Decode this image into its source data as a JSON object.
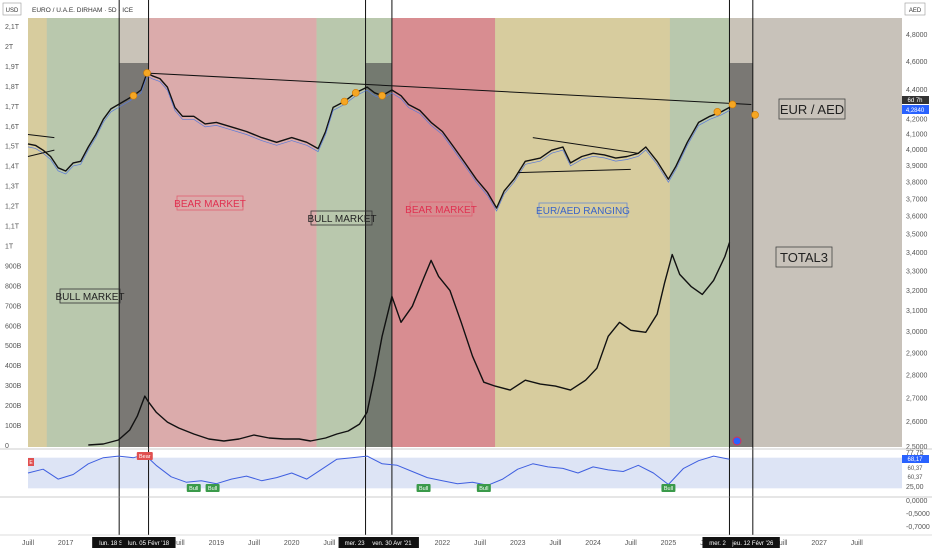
{
  "header": {
    "symbol_title": "EURO / U.A.E. DIRHAM · 5D · ICE",
    "left_currency": "USD",
    "right_currency": "AED"
  },
  "labels": {
    "eur_aed": "EUR / AED",
    "total3": "TOTAL3",
    "bull_market_1": "BULL MARKET",
    "bear_market_1": "BEAR MARKET",
    "bull_market_2": "BULL MARKET",
    "bear_market_2": "BEAR MARKET",
    "ranging": "EUR/AED RANGING"
  },
  "price_tags": {
    "eur_aed_tag": "4,2840",
    "total3_tag": "6d 7h",
    "rsi_tag_1": "68,17",
    "rsi_tag_2": "60,37",
    "rsi_tag_3": "60,37"
  },
  "rsi_signals": {
    "bear": "Bear",
    "bull": "Bull",
    "edge": "E"
  },
  "date_markers": [
    {
      "label": "lun. 18 Sep '17",
      "time": 2017.71
    },
    {
      "label": "lun. 05 Févr '18",
      "time": 2018.1
    },
    {
      "label": "mer. 23 Déc '20",
      "time": 2020.98
    },
    {
      "label": "ven. 30 Avr '21",
      "time": 2021.33
    },
    {
      "label": "mer. 22 Oct '25",
      "time": 2025.81
    },
    {
      "label": "jeu. 12 Févr '26",
      "time": 2026.12
    }
  ],
  "chart_data": {
    "type": "line",
    "x_axis": {
      "ticks": [
        {
          "label": "Juill",
          "t": 2016.5
        },
        {
          "label": "2017",
          "t": 2017.0
        },
        {
          "label": "Juill",
          "t": 2018.5
        },
        {
          "label": "2019",
          "t": 2019.0
        },
        {
          "label": "Juill",
          "t": 2019.5
        },
        {
          "label": "2020",
          "t": 2020.0
        },
        {
          "label": "Juill",
          "t": 2020.5
        },
        {
          "label": "2022",
          "t": 2022.0
        },
        {
          "label": "Juill",
          "t": 2022.5
        },
        {
          "label": "2023",
          "t": 2023.0
        },
        {
          "label": "Juill",
          "t": 2023.5
        },
        {
          "label": "2024",
          "t": 2024.0
        },
        {
          "label": "Juill",
          "t": 2024.5
        },
        {
          "label": "2025",
          "t": 2025.0
        },
        {
          "label": "Juill",
          "t": 2025.5
        },
        {
          "label": "Juill",
          "t": 2026.5
        },
        {
          "label": "2027",
          "t": 2027.0
        },
        {
          "label": "Juill",
          "t": 2027.5
        }
      ],
      "range": [
        2016.5,
        2028.1
      ]
    },
    "left_axis": {
      "ticks": [
        "2,1T",
        "2T",
        "1,9T",
        "1,8T",
        "1,7T",
        "1,6T",
        "1,5T",
        "1,4T",
        "1,3T",
        "1,2T",
        "1,1T",
        "1T",
        "900B",
        "800B",
        "700B",
        "600B",
        "500B",
        "400B",
        "300B",
        "200B",
        "100B",
        "0"
      ],
      "values": [
        2.1,
        2.0,
        1.9,
        1.8,
        1.7,
        1.6,
        1.5,
        1.4,
        1.3,
        1.2,
        1.1,
        1.0,
        0.9,
        0.8,
        0.7,
        0.6,
        0.5,
        0.4,
        0.3,
        0.2,
        0.1,
        0.0
      ]
    },
    "right_axis": {
      "ticks": [
        "4,8000",
        "4,6000",
        "4,4000",
        "4,2000",
        "4,1000",
        "4,0000",
        "3,9000",
        "3,8000",
        "3,7000",
        "3,6000",
        "3,5000",
        "3,4000",
        "3,3000",
        "3,2000",
        "3,1000",
        "3,0000",
        "2,9000",
        "2,8000",
        "2,7000",
        "2,6000",
        "2,5000"
      ],
      "values": [
        4.8,
        4.6,
        4.4,
        4.2,
        4.1,
        4.0,
        3.9,
        3.8,
        3.7,
        3.6,
        3.5,
        3.4,
        3.3,
        3.2,
        3.1,
        3.0,
        2.9,
        2.8,
        2.7,
        2.6,
        2.5
      ]
    },
    "rsi_axis": {
      "ticks": [
        "77,75",
        "25,00",
        "0,0000",
        "-0,5000",
        "-0,7000"
      ],
      "values": [
        77.75,
        25.0,
        0,
        -0.5,
        -0.7
      ]
    },
    "zones": [
      {
        "start": 2016.5,
        "end": 2016.75,
        "kind": "neutral"
      },
      {
        "start": 2016.75,
        "end": 2017.71,
        "kind": "bull"
      },
      {
        "start": 2018.1,
        "end": 2020.33,
        "kind": "bear"
      },
      {
        "start": 2020.33,
        "end": 2021.33,
        "kind": "bull"
      },
      {
        "start": 2021.33,
        "end": 2022.7,
        "kind": "bear-strong"
      },
      {
        "start": 2022.7,
        "end": 2025.02,
        "kind": "neutral"
      },
      {
        "start": 2025.02,
        "end": 2025.81,
        "kind": "bull"
      }
    ],
    "dark_zones": [
      {
        "start": 2017.71,
        "end": 2018.1
      },
      {
        "start": 2020.98,
        "end": 2021.33
      },
      {
        "start": 2025.81,
        "end": 2026.12
      }
    ],
    "series": [
      {
        "name": "EUR / AED",
        "axis": "right",
        "points": [
          [
            2016.5,
            4.04
          ],
          [
            2016.6,
            4.03
          ],
          [
            2016.7,
            4.0
          ],
          [
            2016.8,
            3.96
          ],
          [
            2016.9,
            3.89
          ],
          [
            2017.0,
            3.87
          ],
          [
            2017.1,
            3.92
          ],
          [
            2017.2,
            3.93
          ],
          [
            2017.3,
            4.02
          ],
          [
            2017.4,
            4.1
          ],
          [
            2017.5,
            4.2
          ],
          [
            2017.6,
            4.27
          ],
          [
            2017.7,
            4.3
          ],
          [
            2017.8,
            4.33
          ],
          [
            2017.9,
            4.36
          ],
          [
            2018.0,
            4.4
          ],
          [
            2018.08,
            4.52
          ],
          [
            2018.15,
            4.5
          ],
          [
            2018.25,
            4.48
          ],
          [
            2018.35,
            4.42
          ],
          [
            2018.45,
            4.28
          ],
          [
            2018.55,
            4.22
          ],
          [
            2018.7,
            4.22
          ],
          [
            2018.85,
            4.17
          ],
          [
            2019.0,
            4.18
          ],
          [
            2019.2,
            4.15
          ],
          [
            2019.4,
            4.12
          ],
          [
            2019.6,
            4.08
          ],
          [
            2019.8,
            4.05
          ],
          [
            2020.0,
            4.08
          ],
          [
            2020.2,
            4.05
          ],
          [
            2020.35,
            4.01
          ],
          [
            2020.45,
            4.12
          ],
          [
            2020.55,
            4.28
          ],
          [
            2020.7,
            4.32
          ],
          [
            2020.85,
            4.38
          ],
          [
            2021.0,
            4.42
          ],
          [
            2021.1,
            4.38
          ],
          [
            2021.2,
            4.36
          ],
          [
            2021.33,
            4.4
          ],
          [
            2021.45,
            4.36
          ],
          [
            2021.55,
            4.3
          ],
          [
            2021.7,
            4.26
          ],
          [
            2021.85,
            4.18
          ],
          [
            2022.0,
            4.12
          ],
          [
            2022.15,
            4.02
          ],
          [
            2022.3,
            3.92
          ],
          [
            2022.45,
            3.82
          ],
          [
            2022.6,
            3.74
          ],
          [
            2022.72,
            3.65
          ],
          [
            2022.82,
            3.75
          ],
          [
            2022.95,
            3.82
          ],
          [
            2023.1,
            3.93
          ],
          [
            2023.3,
            3.95
          ],
          [
            2023.45,
            4.0
          ],
          [
            2023.6,
            4.02
          ],
          [
            2023.7,
            3.92
          ],
          [
            2023.85,
            3.96
          ],
          [
            2024.0,
            3.98
          ],
          [
            2024.15,
            3.97
          ],
          [
            2024.3,
            3.95
          ],
          [
            2024.45,
            3.96
          ],
          [
            2024.6,
            3.98
          ],
          [
            2024.7,
            4.02
          ],
          [
            2024.85,
            3.93
          ],
          [
            2025.0,
            3.82
          ],
          [
            2025.1,
            3.9
          ],
          [
            2025.25,
            4.05
          ],
          [
            2025.4,
            4.18
          ],
          [
            2025.55,
            4.22
          ],
          [
            2025.7,
            4.25
          ],
          [
            2025.81,
            4.28
          ]
        ]
      },
      {
        "name": "TOTAL3",
        "axis": "left",
        "points": [
          [
            2017.3,
            0.005
          ],
          [
            2017.5,
            0.01
          ],
          [
            2017.7,
            0.03
          ],
          [
            2017.85,
            0.08
          ],
          [
            2017.95,
            0.15
          ],
          [
            2018.05,
            0.25
          ],
          [
            2018.1,
            0.22
          ],
          [
            2018.2,
            0.17
          ],
          [
            2018.35,
            0.12
          ],
          [
            2018.5,
            0.09
          ],
          [
            2018.7,
            0.06
          ],
          [
            2018.9,
            0.035
          ],
          [
            2019.1,
            0.025
          ],
          [
            2019.3,
            0.035
          ],
          [
            2019.5,
            0.055
          ],
          [
            2019.7,
            0.04
          ],
          [
            2019.9,
            0.035
          ],
          [
            2020.1,
            0.035
          ],
          [
            2020.25,
            0.025
          ],
          [
            2020.45,
            0.04
          ],
          [
            2020.6,
            0.06
          ],
          [
            2020.75,
            0.075
          ],
          [
            2020.9,
            0.11
          ],
          [
            2021.0,
            0.17
          ],
          [
            2021.1,
            0.35
          ],
          [
            2021.2,
            0.55
          ],
          [
            2021.33,
            0.75
          ],
          [
            2021.45,
            0.62
          ],
          [
            2021.6,
            0.7
          ],
          [
            2021.75,
            0.84
          ],
          [
            2021.85,
            0.93
          ],
          [
            2021.95,
            0.85
          ],
          [
            2022.1,
            0.78
          ],
          [
            2022.25,
            0.62
          ],
          [
            2022.4,
            0.45
          ],
          [
            2022.55,
            0.32
          ],
          [
            2022.7,
            0.3
          ],
          [
            2022.9,
            0.28
          ],
          [
            2023.1,
            0.33
          ],
          [
            2023.3,
            0.31
          ],
          [
            2023.5,
            0.3
          ],
          [
            2023.7,
            0.28
          ],
          [
            2023.9,
            0.33
          ],
          [
            2024.05,
            0.39
          ],
          [
            2024.2,
            0.55
          ],
          [
            2024.35,
            0.62
          ],
          [
            2024.5,
            0.58
          ],
          [
            2024.7,
            0.57
          ],
          [
            2024.85,
            0.66
          ],
          [
            2024.95,
            0.82
          ],
          [
            2025.05,
            0.96
          ],
          [
            2025.15,
            0.86
          ],
          [
            2025.3,
            0.8
          ],
          [
            2025.45,
            0.76
          ],
          [
            2025.6,
            0.83
          ],
          [
            2025.75,
            0.95
          ],
          [
            2025.81,
            1.02
          ]
        ]
      },
      {
        "name": "RSI",
        "axis": "rsi",
        "points": [
          [
            2016.5,
            50
          ],
          [
            2016.7,
            55
          ],
          [
            2016.9,
            42
          ],
          [
            2017.1,
            48
          ],
          [
            2017.3,
            62
          ],
          [
            2017.5,
            70
          ],
          [
            2017.7,
            72
          ],
          [
            2017.9,
            70
          ],
          [
            2018.05,
            74
          ],
          [
            2018.2,
            60
          ],
          [
            2018.4,
            45
          ],
          [
            2018.6,
            38
          ],
          [
            2018.8,
            40
          ],
          [
            2019.0,
            36
          ],
          [
            2019.2,
            42
          ],
          [
            2019.4,
            46
          ],
          [
            2019.6,
            40
          ],
          [
            2019.8,
            44
          ],
          [
            2020.0,
            50
          ],
          [
            2020.2,
            42
          ],
          [
            2020.4,
            55
          ],
          [
            2020.6,
            68
          ],
          [
            2020.8,
            70
          ],
          [
            2021.0,
            72
          ],
          [
            2021.2,
            62
          ],
          [
            2021.4,
            60
          ],
          [
            2021.6,
            52
          ],
          [
            2021.8,
            44
          ],
          [
            2022.0,
            40
          ],
          [
            2022.2,
            36
          ],
          [
            2022.4,
            38
          ],
          [
            2022.6,
            34
          ],
          [
            2022.8,
            42
          ],
          [
            2023.0,
            55
          ],
          [
            2023.2,
            62
          ],
          [
            2023.4,
            58
          ],
          [
            2023.6,
            56
          ],
          [
            2023.8,
            50
          ],
          [
            2024.0,
            58
          ],
          [
            2024.2,
            54
          ],
          [
            2024.4,
            52
          ],
          [
            2024.6,
            60
          ],
          [
            2024.8,
            50
          ],
          [
            2025.0,
            35
          ],
          [
            2025.2,
            56
          ],
          [
            2025.4,
            66
          ],
          [
            2025.6,
            72
          ],
          [
            2025.81,
            68
          ]
        ]
      }
    ],
    "trendlines": [
      {
        "from": [
          2018.05,
          4.52
        ],
        "to": [
          2026.1,
          4.3
        ],
        "axis": "right"
      },
      {
        "from": [
          2023.2,
          4.08
        ],
        "to": [
          2024.6,
          3.98
        ],
        "axis": "right"
      },
      {
        "from": [
          2023.0,
          3.86
        ],
        "to": [
          2024.5,
          3.88
        ],
        "axis": "right"
      },
      {
        "from": [
          2016.5,
          4.1
        ],
        "to": [
          2016.85,
          4.08
        ],
        "axis": "right"
      },
      {
        "from": [
          2016.5,
          3.96
        ],
        "to": [
          2016.85,
          4.0
        ],
        "axis": "right"
      }
    ],
    "highlight_points": [
      {
        "t": 2017.9,
        "v": 4.36,
        "axis": "right"
      },
      {
        "t": 2018.08,
        "v": 4.52,
        "axis": "right"
      },
      {
        "t": 2020.7,
        "v": 4.32,
        "axis": "right"
      },
      {
        "t": 2020.85,
        "v": 4.38,
        "axis": "right"
      },
      {
        "t": 2021.2,
        "v": 4.36,
        "axis": "right"
      },
      {
        "t": 2025.65,
        "v": 4.25,
        "axis": "right"
      },
      {
        "t": 2025.85,
        "v": 4.3,
        "axis": "right"
      },
      {
        "t": 2026.15,
        "v": 4.23,
        "axis": "right"
      }
    ],
    "bull_signals": [
      2018.7,
      2018.95,
      2021.75,
      2022.55,
      2025.0
    ],
    "bear_signals": [
      2018.05
    ]
  }
}
